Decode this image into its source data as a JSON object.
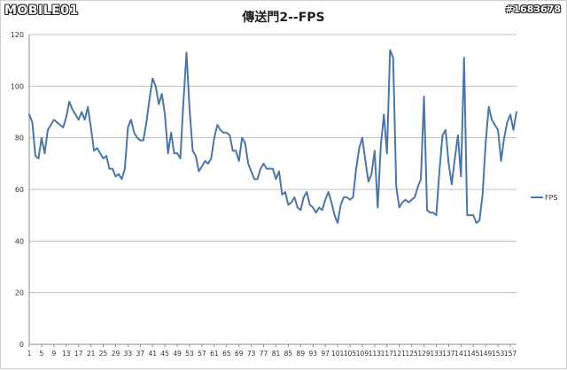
{
  "watermark": {
    "logo_text": "MOBILE01",
    "id_text": "#1683678"
  },
  "chart_data": {
    "type": "line",
    "title": "傳送門2--FPS",
    "xlabel": "",
    "ylabel": "",
    "ylim": [
      0,
      120
    ],
    "yticks": [
      0,
      20,
      40,
      60,
      80,
      100,
      120
    ],
    "xticks": [
      1,
      5,
      9,
      13,
      17,
      21,
      25,
      29,
      33,
      37,
      41,
      45,
      49,
      53,
      57,
      61,
      65,
      69,
      73,
      77,
      81,
      85,
      89,
      93,
      97,
      101,
      105,
      109,
      113,
      117,
      121,
      125,
      129,
      133,
      137,
      141,
      145,
      149,
      153,
      157
    ],
    "grid": true,
    "legend": "right",
    "colors": {
      "line": "#4a77a8",
      "grid": "#bfbfbf",
      "axis": "#8c8c8c"
    },
    "series": [
      {
        "name": "FPS",
        "values": [
          89,
          86,
          73,
          72,
          80,
          74,
          83,
          85,
          87,
          86,
          85,
          84,
          88,
          94,
          91,
          89,
          87,
          90,
          87,
          92,
          84,
          75,
          76,
          74,
          72,
          73,
          68,
          68,
          65,
          66,
          64,
          68,
          84,
          87,
          82,
          80,
          79,
          79,
          86,
          95,
          103,
          100,
          93,
          97,
          89,
          74,
          82,
          74,
          74,
          72,
          94,
          113,
          91,
          75,
          73,
          67,
          69,
          71,
          70,
          72,
          80,
          85,
          83,
          82,
          82,
          81,
          75,
          75,
          71,
          80,
          78,
          70,
          67,
          64,
          64,
          68,
          70,
          68,
          68,
          68,
          64,
          67,
          58,
          59,
          54,
          55,
          57,
          53,
          52,
          57,
          59,
          54,
          53,
          51,
          53,
          52,
          56,
          59,
          55,
          50,
          47,
          54,
          57,
          57,
          56,
          57,
          68,
          76,
          80,
          71,
          63,
          66,
          75,
          53,
          77,
          89,
          74,
          114,
          111,
          61,
          53,
          55,
          56,
          55,
          56,
          57,
          61,
          64,
          96,
          52,
          51,
          51,
          50,
          67,
          81,
          83,
          70,
          62,
          72,
          81,
          65,
          111,
          50,
          50,
          50,
          47,
          48,
          58,
          78,
          92,
          87,
          85,
          83,
          71,
          80,
          86,
          89,
          83,
          90
        ]
      }
    ]
  }
}
